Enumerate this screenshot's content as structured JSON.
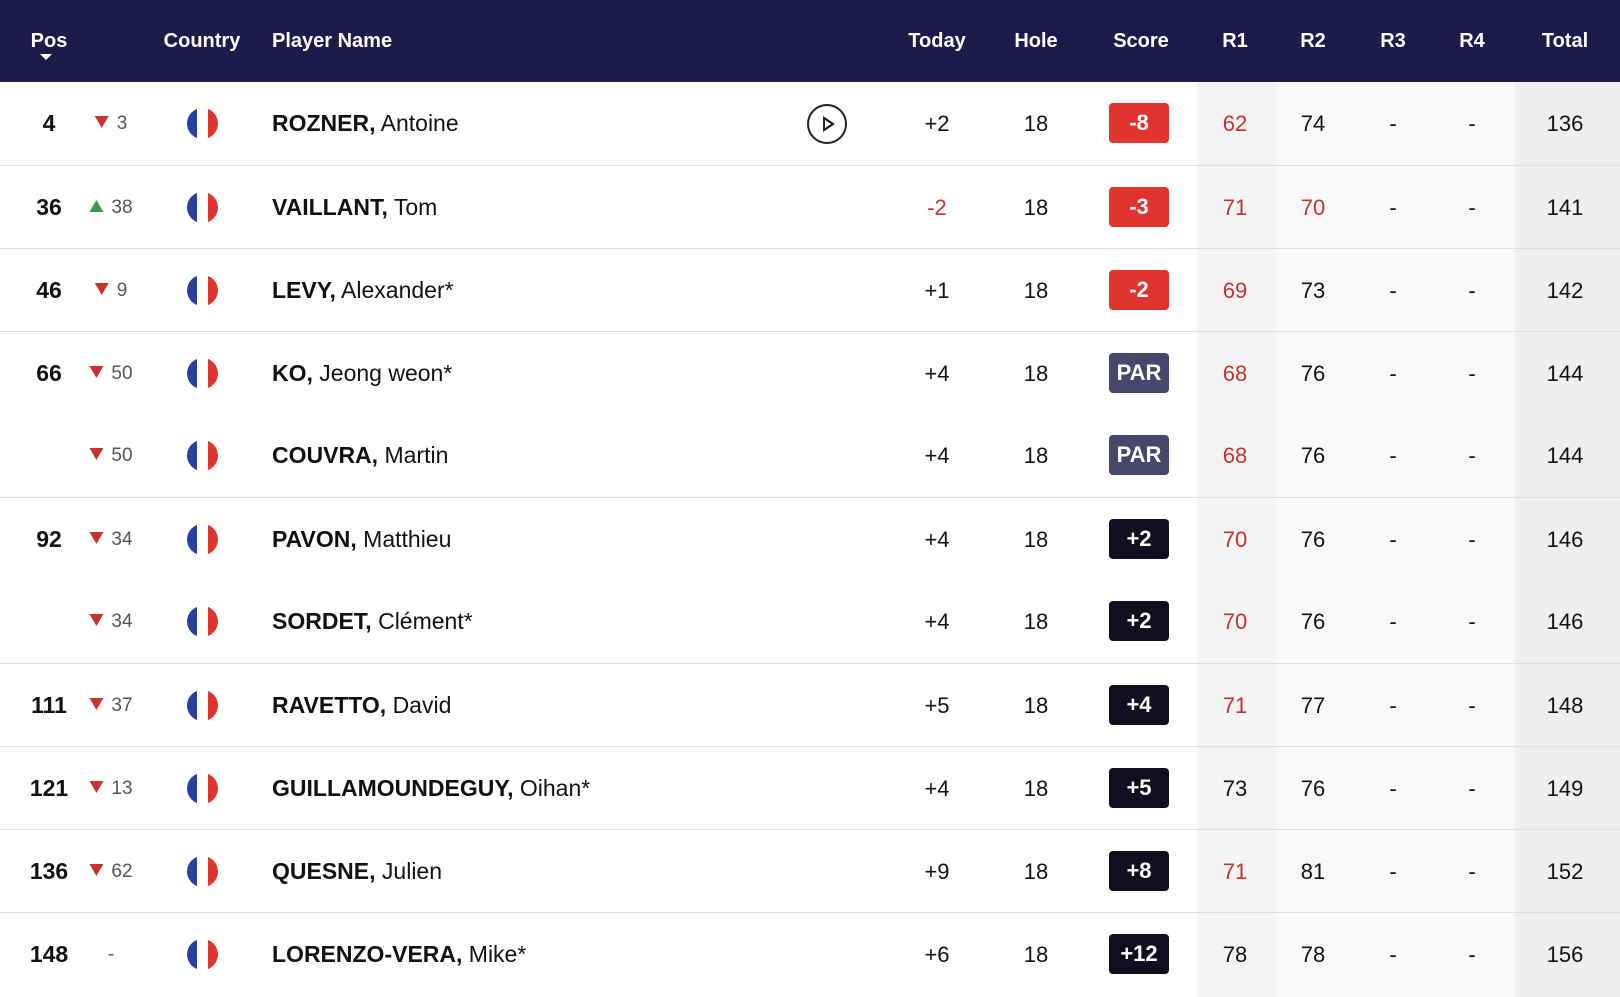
{
  "colors": {
    "header_bg": "#1e1b4b",
    "under_par": "#e0342f",
    "par": "#45476b",
    "over_par": "#0f0f1f",
    "red_text": "#c8322b",
    "up_arrow": "#3d9a52",
    "down_arrow": "#c8322b"
  },
  "header": {
    "pos": "Pos",
    "country": "Country",
    "player_name": "Player Name",
    "today": "Today",
    "hole": "Hole",
    "score": "Score",
    "r1": "R1",
    "r2": "R2",
    "r3": "R3",
    "r4": "R4",
    "total": "Total"
  },
  "rows": [
    {
      "pos": "4",
      "move_dir": "down",
      "move": "3",
      "country": "France",
      "last": "ROZNER,",
      "first": "Antoine",
      "video": true,
      "today": "+2",
      "today_red": false,
      "hole": "18",
      "score": "-8",
      "score_type": "under",
      "r1": "62",
      "r1_red": true,
      "r2": "74",
      "r2_red": false,
      "r3": "-",
      "r4": "-",
      "total": "136",
      "sep": false
    },
    {
      "pos": "36",
      "move_dir": "up",
      "move": "38",
      "country": "France",
      "last": "VAILLANT,",
      "first": "Tom",
      "video": false,
      "today": "-2",
      "today_red": true,
      "hole": "18",
      "score": "-3",
      "score_type": "under",
      "r1": "71",
      "r1_red": true,
      "r2": "70",
      "r2_red": true,
      "r3": "-",
      "r4": "-",
      "total": "141",
      "sep": true
    },
    {
      "pos": "46",
      "move_dir": "down",
      "move": "9",
      "country": "France",
      "last": "LEVY,",
      "first": "Alexander*",
      "video": false,
      "today": "+1",
      "today_red": false,
      "hole": "18",
      "score": "-2",
      "score_type": "under",
      "r1": "69",
      "r1_red": true,
      "r2": "73",
      "r2_red": false,
      "r3": "-",
      "r4": "-",
      "total": "142",
      "sep": true
    },
    {
      "pos": "66",
      "move_dir": "down",
      "move": "50",
      "country": "France",
      "last": "KO,",
      "first": "Jeong weon*",
      "video": false,
      "today": "+4",
      "today_red": false,
      "hole": "18",
      "score": "PAR",
      "score_type": "par",
      "r1": "68",
      "r1_red": true,
      "r2": "76",
      "r2_red": false,
      "r3": "-",
      "r4": "-",
      "total": "144",
      "sep": true
    },
    {
      "pos": "",
      "move_dir": "down",
      "move": "50",
      "country": "France",
      "last": "COUVRA,",
      "first": "Martin",
      "video": false,
      "today": "+4",
      "today_red": false,
      "hole": "18",
      "score": "PAR",
      "score_type": "par",
      "r1": "68",
      "r1_red": true,
      "r2": "76",
      "r2_red": false,
      "r3": "-",
      "r4": "-",
      "total": "144",
      "sep": false
    },
    {
      "pos": "92",
      "move_dir": "down",
      "move": "34",
      "country": "France",
      "last": "PAVON,",
      "first": "Matthieu",
      "video": false,
      "today": "+4",
      "today_red": false,
      "hole": "18",
      "score": "+2",
      "score_type": "over",
      "r1": "70",
      "r1_red": true,
      "r2": "76",
      "r2_red": false,
      "r3": "-",
      "r4": "-",
      "total": "146",
      "sep": true
    },
    {
      "pos": "",
      "move_dir": "down",
      "move": "34",
      "country": "France",
      "last": "SORDET,",
      "first": "Clément*",
      "video": false,
      "today": "+4",
      "today_red": false,
      "hole": "18",
      "score": "+2",
      "score_type": "over",
      "r1": "70",
      "r1_red": true,
      "r2": "76",
      "r2_red": false,
      "r3": "-",
      "r4": "-",
      "total": "146",
      "sep": false
    },
    {
      "pos": "111",
      "move_dir": "down",
      "move": "37",
      "country": "France",
      "last": "RAVETTO,",
      "first": "David",
      "video": false,
      "today": "+5",
      "today_red": false,
      "hole": "18",
      "score": "+4",
      "score_type": "over",
      "r1": "71",
      "r1_red": true,
      "r2": "77",
      "r2_red": false,
      "r3": "-",
      "r4": "-",
      "total": "148",
      "sep": true
    },
    {
      "pos": "121",
      "move_dir": "down",
      "move": "13",
      "country": "France",
      "last": "GUILLAMOUNDEGUY,",
      "first": "Oihan*",
      "video": false,
      "today": "+4",
      "today_red": false,
      "hole": "18",
      "score": "+5",
      "score_type": "over",
      "r1": "73",
      "r1_red": false,
      "r2": "76",
      "r2_red": false,
      "r3": "-",
      "r4": "-",
      "total": "149",
      "sep": true
    },
    {
      "pos": "136",
      "move_dir": "down",
      "move": "62",
      "country": "France",
      "last": "QUESNE,",
      "first": "Julien",
      "video": false,
      "today": "+9",
      "today_red": false,
      "hole": "18",
      "score": "+8",
      "score_type": "over",
      "r1": "71",
      "r1_red": true,
      "r2": "81",
      "r2_red": false,
      "r3": "-",
      "r4": "-",
      "total": "152",
      "sep": true
    },
    {
      "pos": "148",
      "move_dir": "none",
      "move": "-",
      "country": "France",
      "last": "LORENZO-VERA,",
      "first": "Mike*",
      "video": false,
      "today": "+6",
      "today_red": false,
      "hole": "18",
      "score": "+12",
      "score_type": "over",
      "r1": "78",
      "r1_red": false,
      "r2": "78",
      "r2_red": false,
      "r3": "-",
      "r4": "-",
      "total": "156",
      "sep": true
    }
  ]
}
